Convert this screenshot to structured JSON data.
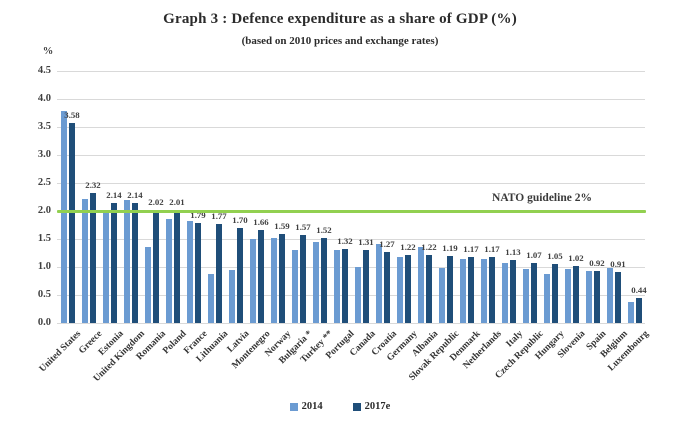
{
  "chart_data": {
    "type": "bar",
    "title": "Graph 3 : Defence expenditure as a share of GDP (%)",
    "subtitle": "(based on 2010 prices and exchange rates)",
    "ylabel": "%",
    "xlabel": "",
    "ylim": [
      0,
      4.5
    ],
    "ytick_step": 0.5,
    "yticks": [
      "0.0",
      "0.5",
      "1.0",
      "1.5",
      "2.0",
      "2.5",
      "3.0",
      "3.5",
      "4.0",
      "4.5"
    ],
    "grid": true,
    "legend_position": "bottom",
    "categories": [
      "United States",
      "Greece",
      "Estonia",
      "United Kingdom",
      "Romania",
      "Poland",
      "France",
      "Lithuania",
      "Latvia",
      "Montenegro",
      "Norway",
      "Bulgaria *",
      "Turkey **",
      "Portugal",
      "Canada",
      "Croatia",
      "Germany",
      "Albania",
      "Slovak Republic",
      "Denmark",
      "Netherlands",
      "Italy",
      "Czech Republic",
      "Hungary",
      "Slovenia",
      "Spain",
      "Belgium",
      "Luxembourg"
    ],
    "series": [
      {
        "name": "2014",
        "color": "#6b9bd2",
        "data_labels": false,
        "values": [
          3.78,
          2.21,
          1.96,
          2.19,
          1.35,
          1.85,
          1.82,
          0.88,
          0.94,
          1.5,
          1.51,
          1.31,
          1.45,
          1.31,
          1.0,
          1.41,
          1.18,
          1.35,
          0.99,
          1.15,
          1.15,
          1.08,
          0.96,
          0.87,
          0.97,
          0.93,
          0.98,
          0.38
        ]
      },
      {
        "name": "2017e",
        "color": "#1f4e79",
        "data_labels": true,
        "values": [
          3.58,
          2.32,
          2.14,
          2.14,
          2.02,
          2.01,
          1.79,
          1.77,
          1.7,
          1.66,
          1.59,
          1.57,
          1.52,
          1.32,
          1.31,
          1.27,
          1.22,
          1.22,
          1.19,
          1.17,
          1.17,
          1.13,
          1.07,
          1.05,
          1.02,
          0.92,
          0.91,
          0.44
        ]
      }
    ],
    "reference_line": {
      "value": 2.0,
      "label": "NATO guideline 2%",
      "color": "#92d050"
    },
    "colors": {
      "gridline": "#d9d9d9",
      "axis_text": "#404040",
      "title_text": "#2b2b2b"
    }
  }
}
